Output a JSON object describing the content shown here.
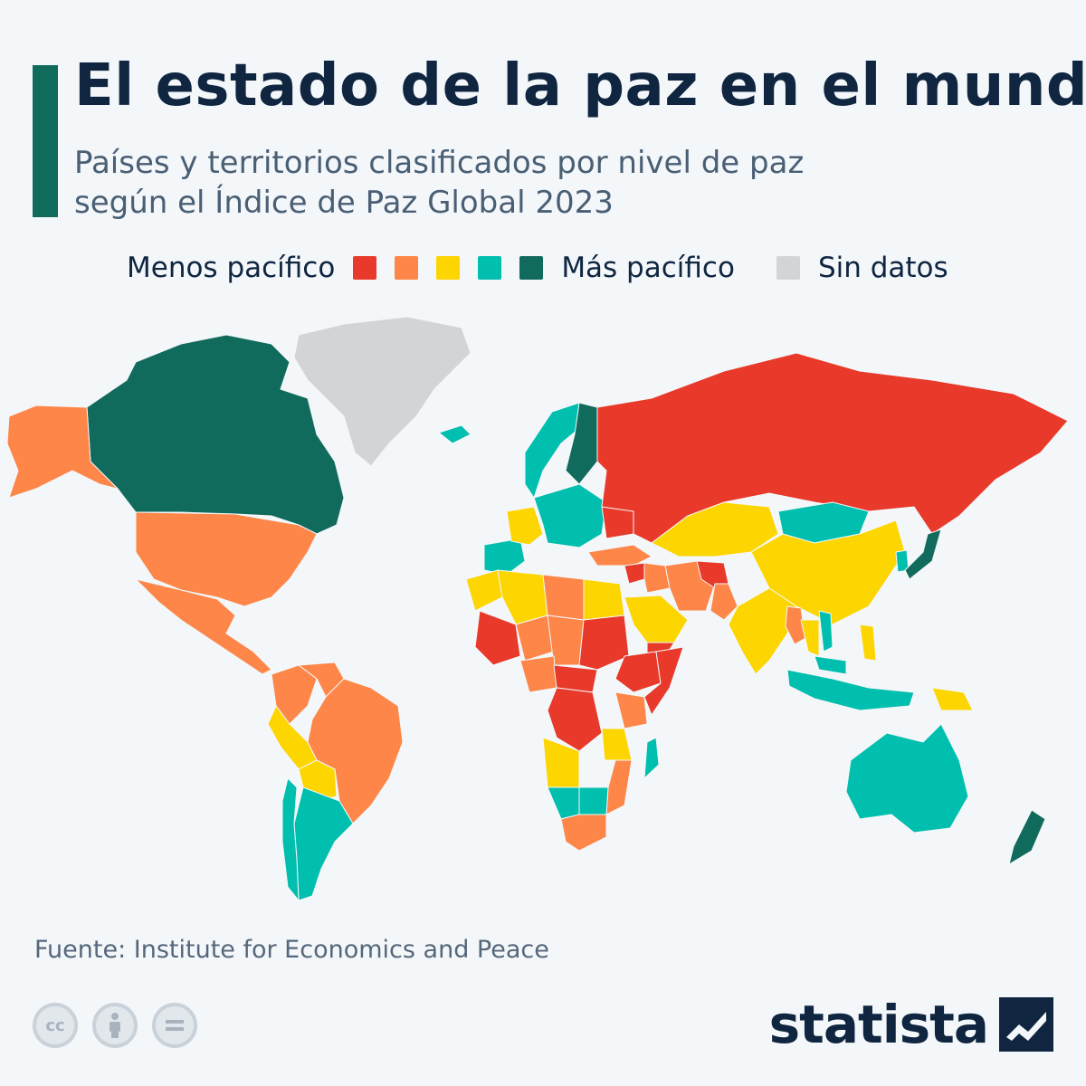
{
  "header": {
    "title": "El estado de la paz en el mundo",
    "subtitle_line1": "Países y territorios clasificados por nivel de paz",
    "subtitle_line2": "según el Índice de Paz Global 2023",
    "accent_color": "#116b5c"
  },
  "legend": {
    "left_label": "Menos pacífico",
    "right_label": "Más pacífico",
    "no_data_label": "Sin datos",
    "scale": [
      {
        "level": 1,
        "color": "#e8392a"
      },
      {
        "level": 2,
        "color": "#fd8648"
      },
      {
        "level": 3,
        "color": "#fdd500"
      },
      {
        "level": 4,
        "color": "#00bfae"
      },
      {
        "level": 5,
        "color": "#116b5c"
      }
    ],
    "no_data_color": "#d2d4d6"
  },
  "map": {
    "levels": {
      "Canadá": 5,
      "Estados Unidos": 2,
      "Alaska": 2,
      "Groenlandia": 0,
      "Islandia": 4,
      "México": 2,
      "Brasil": 2,
      "Colombia": 2,
      "Venezuela": 2,
      "Perú": 3,
      "Bolivia": 3,
      "Argentina": 4,
      "Chile": 4,
      "Uruguay": 4,
      "Paraguay": 3,
      "Rusia": 1,
      "China": 3,
      "India": 3,
      "Mongolia": 4,
      "Japón": 5,
      "Corea del Sur": 4,
      "Kazajistán": 3,
      "Afganistán": 1,
      "Irán": 2,
      "Pakistán": 2,
      "Myanmar": 2,
      "Noruega": 4,
      "Suecia": 4,
      "Finlandia": 5,
      "España": 4,
      "Francia": 3,
      "Ucrania": 1,
      "Turquía": 2,
      "Arabia Saudí": 3,
      "Yemen": 1,
      "Siria": 1,
      "Irak": 2,
      "Mali": 1,
      "Níger": 2,
      "Chad": 2,
      "Sudán": 1,
      "Etiopía": 1,
      "Somalia": 1,
      "RD Congo": 1,
      "República Centroafricana": 1,
      "Nigeria": 2,
      "Argelia": 3,
      "Libia": 2,
      "Egipto": 3,
      "Marruecos": 3,
      "Angola": 3,
      "Namibia": 4,
      "Botsuana": 4,
      "Sudáfrica": 2,
      "Mozambique": 2,
      "Madagascar": 4,
      "Tanzania": 3,
      "Kenia": 2,
      "Australia": 4,
      "Nueva Zelanda": 5,
      "Indonesia": 4,
      "Filipinas": 3,
      "Papúa Nueva Guinea": 3,
      "Vietnam": 4,
      "Tailandia": 3,
      "Malasia": 4
    }
  },
  "footer": {
    "source": "Fuente: Institute for Economics and Peace",
    "cc_icons": [
      "cc-icon",
      "attribution-icon",
      "no-derivatives-icon"
    ],
    "brand": "statista"
  }
}
